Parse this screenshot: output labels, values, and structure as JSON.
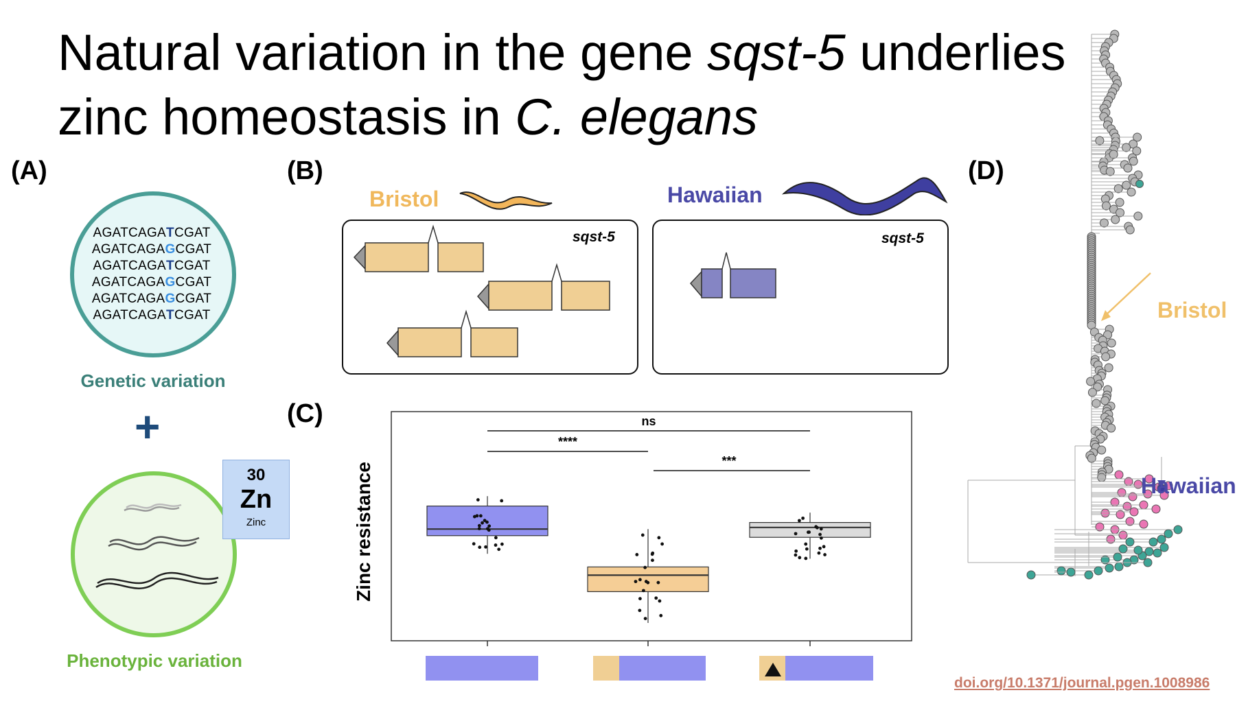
{
  "title": {
    "line1_pre": "Natural variation in the gene ",
    "line1_italic": "sqst-5",
    "line1_post": " underlies",
    "line2_pre": "zinc homeostasis in ",
    "line2_italic": "C. elegans"
  },
  "panels": {
    "a": "(A)",
    "b": "(B)",
    "c": "(C)",
    "d": "(D)"
  },
  "panel_a": {
    "sequences": [
      {
        "pre": "AGATCAGA",
        "snp": "T",
        "post": "CGAT"
      },
      {
        "pre": "AGATCAGA",
        "snp": "G",
        "post": "CGAT"
      },
      {
        "pre": "AGATCAGA",
        "snp": "T",
        "post": "CGAT"
      },
      {
        "pre": "AGATCAGA",
        "snp": "G",
        "post": "CGAT"
      },
      {
        "pre": "AGATCAGA",
        "snp": "G",
        "post": "CGAT"
      },
      {
        "pre": "AGATCAGA",
        "snp": "T",
        "post": "CGAT"
      }
    ],
    "genetic_caption": "Genetic variation",
    "plus": "+",
    "phenotypic_caption": "Phenotypic variation",
    "element": {
      "number": "30",
      "symbol": "Zn",
      "name": "Zinc"
    },
    "colors": {
      "genetic_ring": "#4a9e96",
      "genetic_fill": "#e6f7f7",
      "phenotypic_ring": "#7fce55",
      "phenotypic_fill": "#eef8e8",
      "plus": "#1e4b7a"
    }
  },
  "panel_b": {
    "bristol": "Bristol",
    "hawaiian": "Hawaiian",
    "gene_left": "sqst-5",
    "gene_right": "sqst-5",
    "colors": {
      "bristol": "#f0cf94",
      "hawaiian": "#8585c4",
      "bristol_worm": "#f3b65a",
      "hawaiian_worm": "#3f3fa0"
    }
  },
  "chart_data": {
    "type": "box",
    "ylabel": "Zinc resistance",
    "groups": [
      {
        "color": "#9191f0",
        "q1": 0.58,
        "median": 0.62,
        "q3": 0.76,
        "whisker_low": 0.47,
        "whisker_high": 0.82
      },
      {
        "color": "#f5ce96",
        "q1": 0.24,
        "median": 0.34,
        "q3": 0.39,
        "whisker_low": 0.05,
        "whisker_high": 0.62
      },
      {
        "color": "#dcdcdc",
        "q1": 0.57,
        "median": 0.63,
        "q3": 0.66,
        "whisker_low": 0.44,
        "whisker_high": 0.72
      }
    ],
    "significance": [
      {
        "label": "ns",
        "from": 0,
        "to": 2
      },
      {
        "label": "****",
        "from": 0,
        "to": 1
      },
      {
        "label": "***",
        "from": 1,
        "to": 2
      }
    ],
    "ylim": [
      0,
      1
    ],
    "grid": false
  },
  "panel_d": {
    "bristol_label": "Bristol",
    "hawaiian_label": "Hawaiian",
    "colors": {
      "bristol_label": "#f0c06a",
      "hawaiian_label": "#4a49a6",
      "node_gray": "#b8b8b8",
      "node_pink": "#ea76b4",
      "node_teal": "#3ea596",
      "hawaiian_node": "#3b3ba0"
    }
  },
  "doi": "doi.org/10.1371/journal.pgen.1008986"
}
